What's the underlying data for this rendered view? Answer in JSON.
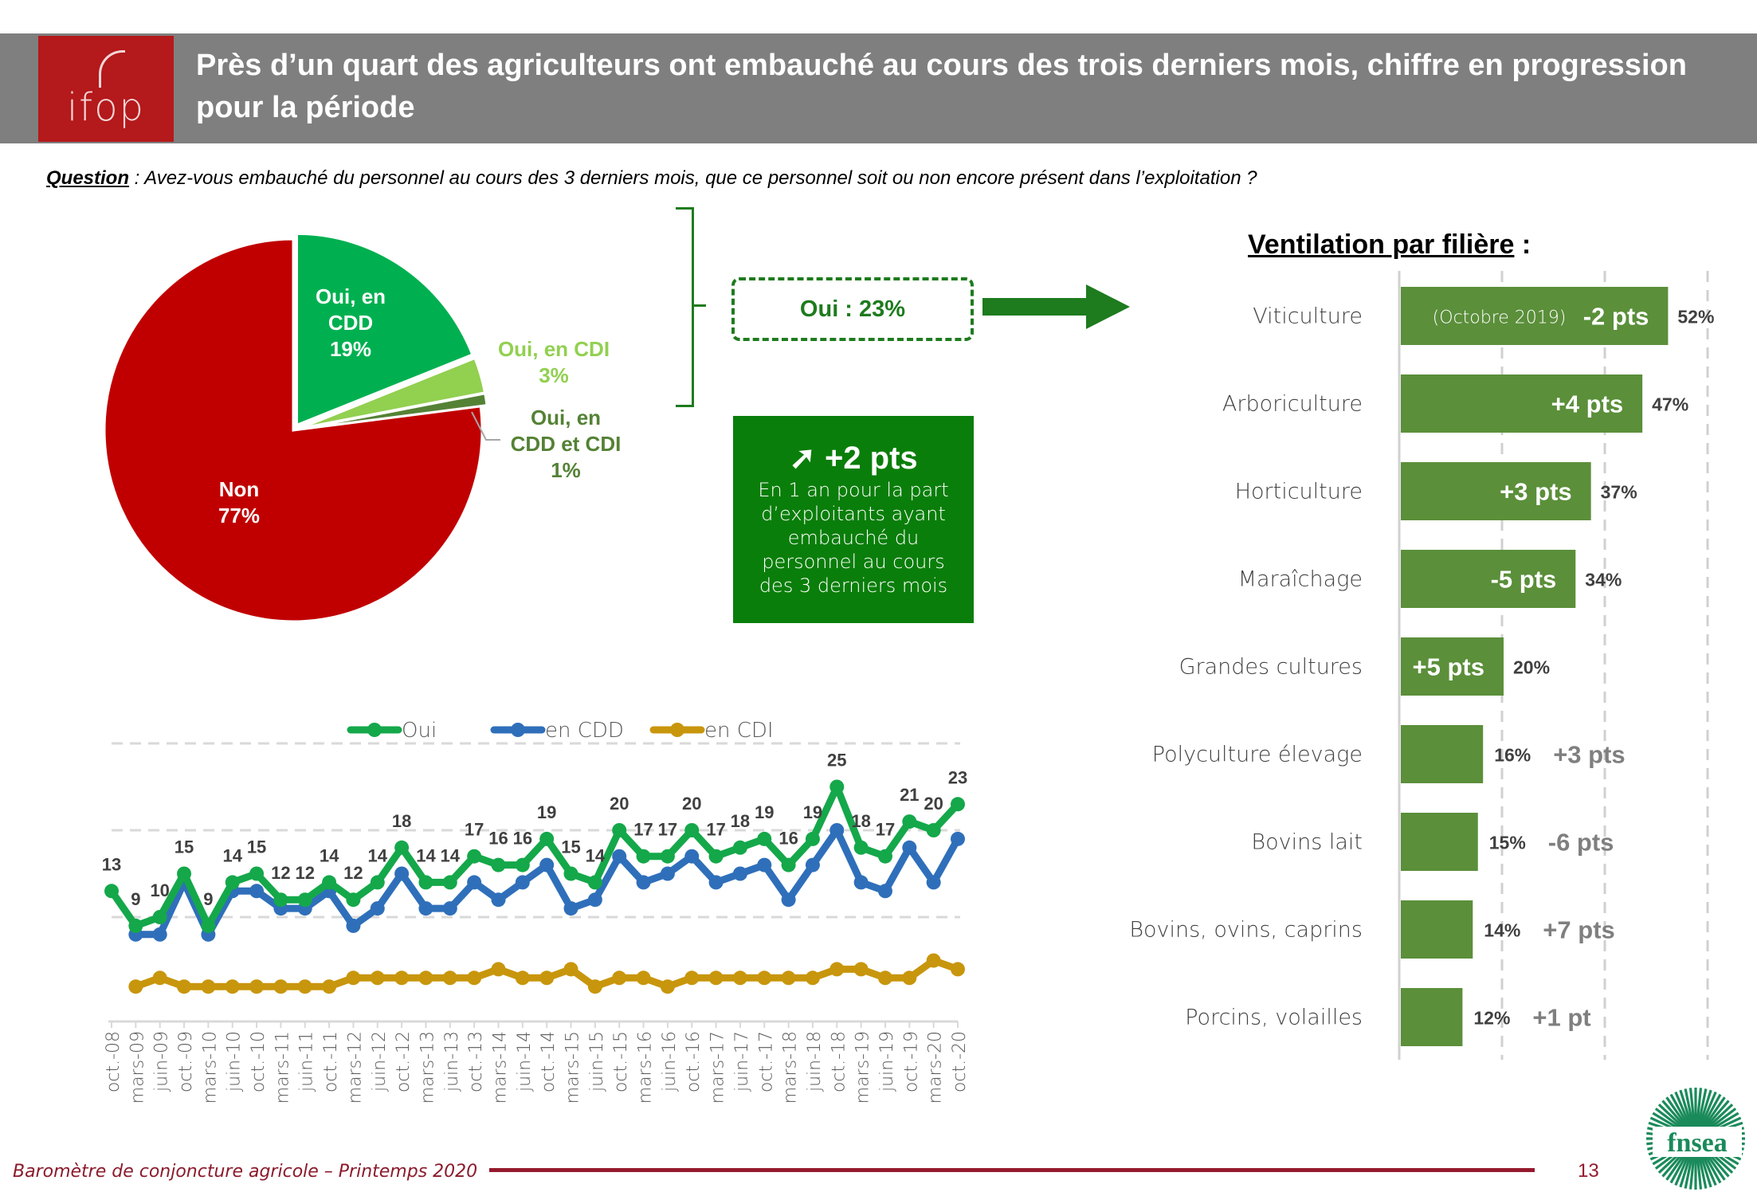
{
  "header": {
    "logo_text": "ifop",
    "title": "Près d’un quart des agriculteurs ont embauché au cours des trois derniers mois, chiffre en progression pour la période"
  },
  "question": {
    "label": "Question",
    "separator": " : ",
    "text": "Avez-vous embauché du personnel au cours des 3 derniers mois, que ce personnel soit ou non encore présent dans l’exploitation ?"
  },
  "summary": {
    "oui_box": "Oui : 23%",
    "trend_icon": "arrow-up-right-icon",
    "trend_arrow": "➚",
    "trend_value": "+2 pts",
    "trend_text": "En 1 an pour la part d’exploitants ayant embauché du personnel au cours des 3 derniers mois"
  },
  "ventilation_title": "Ventilation par filière",
  "ventilation_colon": " :",
  "footer": {
    "text": "Baromètre de conjoncture agricole – Printemps 2020",
    "page": "13",
    "partner_logo": "fnsea"
  },
  "colors": {
    "header_bg": "#7f7f7f",
    "ifop_red": "#b4191b",
    "pie_non": "#c00000",
    "pie_cdd": "#00b050",
    "pie_cdi": "#92d050",
    "pie_both": "#548235",
    "bar_green": "#5b8f3a",
    "accent_green": "#0a7e0a",
    "line_oui": "#14a84a",
    "line_cdd": "#2f6fba",
    "line_cdi": "#c8960c",
    "footer_red": "#951a2e"
  },
  "chart_data": [
    {
      "type": "pie",
      "title": "",
      "slices": [
        {
          "label": "Oui, en CDD",
          "value": 19,
          "display": "19%",
          "color": "#00b050"
        },
        {
          "label": "Oui, en CDI",
          "value": 3,
          "display": "3%",
          "color": "#92d050"
        },
        {
          "label": "Oui, en CDD et CDI",
          "value": 1,
          "display": "1%",
          "color": "#548235"
        },
        {
          "label": "Non",
          "value": 77,
          "display": "77%",
          "color": "#c00000"
        }
      ]
    },
    {
      "type": "bar",
      "orientation": "horizontal",
      "title": "Ventilation par filière",
      "categories": [
        "Viticulture",
        "Arboriculture",
        "Horticulture",
        "Maraîchage",
        "Grandes cultures",
        "Polyculture élevage",
        "Bovins lait",
        "Bovins, ovins, caprins",
        "Porcins, volailles"
      ],
      "values": [
        52,
        47,
        37,
        34,
        20,
        16,
        15,
        14,
        12
      ],
      "value_labels": [
        "52%",
        "47%",
        "37%",
        "34%",
        "20%",
        "16%",
        "15%",
        "14%",
        "12%"
      ],
      "changes": [
        "-2 pts",
        "+4 pts",
        "+3 pts",
        "-5 pts",
        "+5 pts",
        "+3 pts",
        "-6 pts",
        "+7 pts",
        "+1 pt"
      ],
      "change_note": "(Octobre 2019)",
      "xlim": [
        0,
        60
      ],
      "grid": true
    },
    {
      "type": "line",
      "title": "",
      "legend": [
        "Oui",
        "en CDD",
        "en CDI"
      ],
      "legend_position": "top",
      "x": [
        "oct.-08",
        "mars-09",
        "juin-09",
        "oct.-09",
        "mars-10",
        "juin-10",
        "oct.-10",
        "mars-11",
        "juin-11",
        "oct.-11",
        "mars-12",
        "juin-12",
        "oct.-12",
        "mars-13",
        "juin-13",
        "oct.-13",
        "mars-14",
        "juin-14",
        "oct.-14",
        "mars-15",
        "juin-15",
        "oct.-15",
        "mars-16",
        "juin-16",
        "oct.-16",
        "mars-17",
        "juin-17",
        "oct.-17",
        "mars-18",
        "juin-18",
        "oct.-18",
        "mars-19",
        "juin-19",
        "oct.-19",
        "mars-20",
        "oct.-20"
      ],
      "series": [
        {
          "name": "Oui",
          "color": "#14a84a",
          "labeled": true,
          "values": [
            13,
            9,
            10,
            15,
            9,
            14,
            15,
            12,
            12,
            14,
            12,
            14,
            18,
            14,
            14,
            17,
            16,
            16,
            19,
            15,
            14,
            20,
            17,
            17,
            20,
            17,
            18,
            19,
            16,
            19,
            25,
            18,
            17,
            21,
            20,
            23
          ]
        },
        {
          "name": "en CDD",
          "color": "#2f6fba",
          "labeled": false,
          "values": [
            null,
            8,
            8,
            14,
            8,
            13,
            13,
            11,
            11,
            13,
            9,
            11,
            15,
            11,
            11,
            14,
            12,
            14,
            16,
            11,
            12,
            17,
            14,
            15,
            17,
            14,
            15,
            16,
            12,
            16,
            20,
            14,
            13,
            18,
            14,
            19
          ]
        },
        {
          "name": "en CDI",
          "color": "#c8960c",
          "labeled": false,
          "values": [
            null,
            2,
            3,
            2,
            2,
            2,
            2,
            2,
            2,
            2,
            3,
            3,
            3,
            3,
            3,
            3,
            4,
            3,
            3,
            4,
            2,
            3,
            3,
            2,
            3,
            3,
            3,
            3,
            3,
            3,
            4,
            4,
            3,
            3,
            5,
            4
          ]
        }
      ],
      "ylim": [
        0,
        30
      ],
      "gridlines": [
        10,
        20,
        30
      ],
      "grid": true
    }
  ]
}
